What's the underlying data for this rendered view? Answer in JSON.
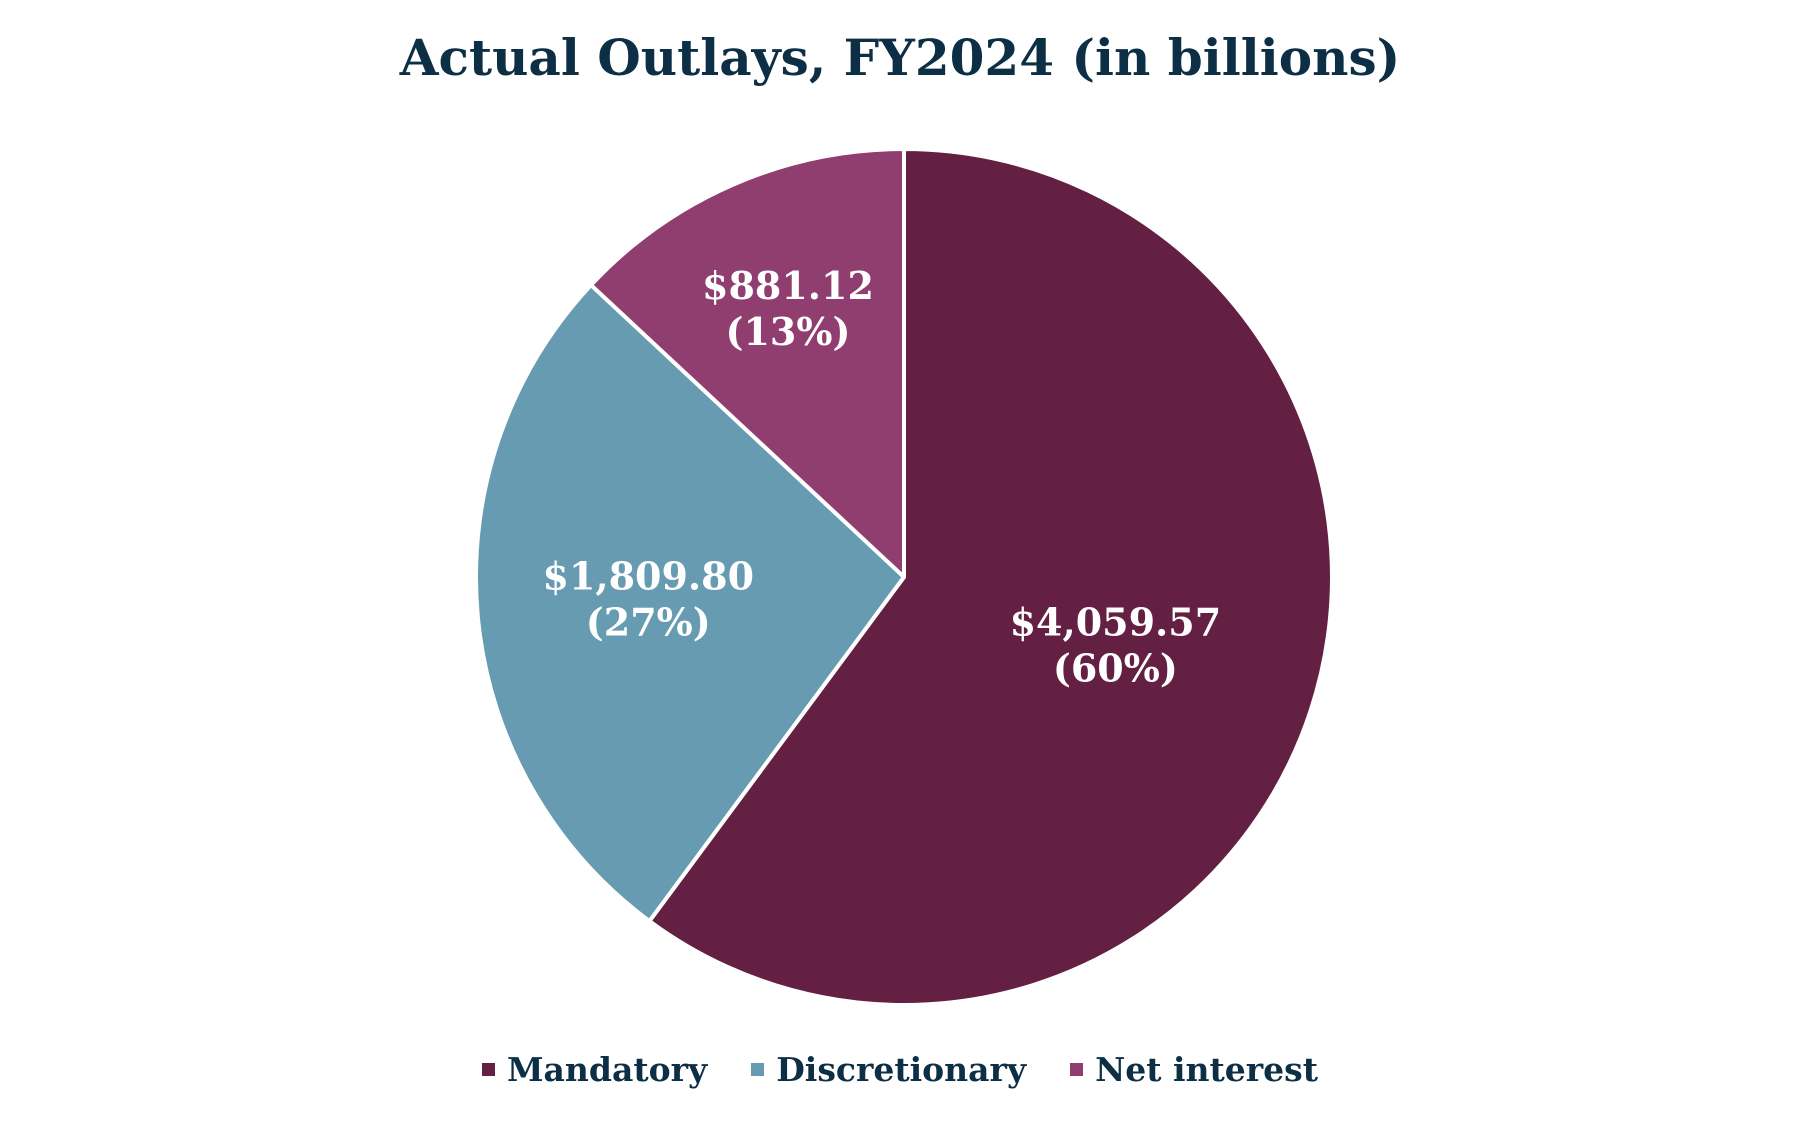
{
  "chart_data": {
    "type": "pie",
    "title": "Actual Outlays, FY2024 (in billions)",
    "slices": [
      {
        "name": "Mandatory",
        "value": 4059.57,
        "value_label": "$4,059.57",
        "percent_label": "(60%)",
        "color": "#632042"
      },
      {
        "name": "Discretionary",
        "value": 1809.8,
        "value_label": "$1,809.80",
        "percent_label": "(27%)",
        "color": "#669bb1"
      },
      {
        "name": "Net interest",
        "value": 881.12,
        "value_label": "$881.12",
        "percent_label": "(13%)",
        "color": "#8f3e6f"
      }
    ],
    "legend_position": "bottom",
    "start_angle": "12 o'clock",
    "direction": "clockwise"
  }
}
